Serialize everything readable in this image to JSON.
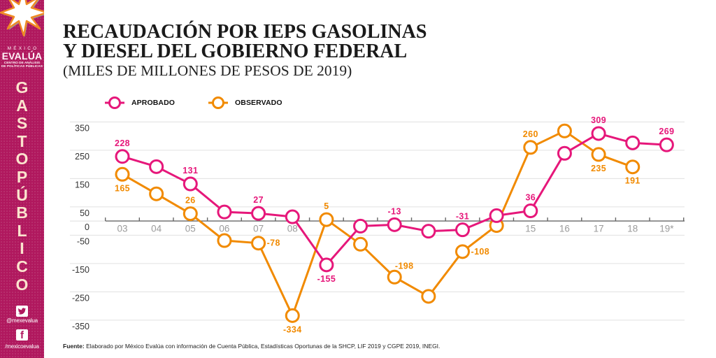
{
  "colors": {
    "sidebar": "#B0185E",
    "sidebar_text": "#FBE4CE",
    "aprobado": "#E6177A",
    "observado": "#F18A00",
    "title": "#1A1A1A"
  },
  "sidebar": {
    "logo_icon": "star-logo-icon",
    "brand": {
      "country": "MÉXICO",
      "name": "EVALÚA",
      "tagline_line1": "CENTRO DE ANÁLISIS",
      "tagline_line2": "DE POLÍTICAS PÚBLICAS"
    },
    "section_title_letters": [
      "G",
      "A",
      "S",
      "T",
      "O",
      "P",
      "Ú",
      "B",
      "L",
      "I",
      "C",
      "O"
    ],
    "social": {
      "twitter_icon": "twitter-bird-icon",
      "twitter_handle": "@mexevalua",
      "facebook_icon": "facebook-f-icon",
      "facebook_glyph": "f",
      "facebook_handle": "/mexicoevalua"
    }
  },
  "header": {
    "title_line1": "RECAUDACIÓN POR IEPS GASOLINAS",
    "title_line2": "Y DIESEL DEL GOBIERNO FEDERAL",
    "subtitle": "(MILES DE MILLONES DE PESOS DE 2019)"
  },
  "footer": {
    "source_label": "Fuente:",
    "source_text": " Elaborado por México Evalúa con información de Cuenta Pública, Estadísticas Oportunas de la SHCP, LIF 2019 y CGPE 2019, INEGI."
  },
  "chart_data": {
    "type": "line",
    "title": "RECAUDACIÓN POR IEPS GASOLINAS Y DIESEL DEL GOBIERNO FEDERAL",
    "subtitle": "(MILES DE MILLONES DE PESOS DE 2019)",
    "xlabel": "",
    "ylabel": "",
    "x_tick_labels": [
      "03",
      "04",
      "05",
      "06",
      "07",
      "08",
      "",
      "",
      "",
      "",
      "",
      "",
      "15",
      "16",
      "17",
      "18",
      "19*"
    ],
    "y_ticks": [
      350,
      250,
      150,
      50,
      0,
      -50,
      -150,
      -250,
      -350
    ],
    "y_tick_labels": [
      "350",
      "250",
      "150",
      "50",
      "0",
      "-50",
      "-150",
      "-250",
      "-350"
    ],
    "ylim": [
      -350,
      350
    ],
    "grid": true,
    "legend_position": "top-left",
    "series": [
      {
        "name": "APROBADO",
        "color": "#E6177A",
        "values": [
          228,
          192,
          131,
          32,
          27,
          15,
          -155,
          -18,
          -13,
          -36,
          -31,
          19,
          36,
          239,
          309,
          276,
          269
        ],
        "labels": [
          {
            "index": 0,
            "text": "228",
            "position": "above"
          },
          {
            "index": 2,
            "text": "131",
            "position": "above"
          },
          {
            "index": 4,
            "text": "27",
            "position": "above"
          },
          {
            "index": 6,
            "text": "-155",
            "position": "below"
          },
          {
            "index": 8,
            "text": "-13",
            "position": "above"
          },
          {
            "index": 10,
            "text": "-31",
            "position": "above"
          },
          {
            "index": 12,
            "text": "36",
            "position": "above"
          },
          {
            "index": 14,
            "text": "309",
            "position": "above"
          },
          {
            "index": 16,
            "text": "269",
            "position": "above"
          }
        ]
      },
      {
        "name": "OBSERVADO",
        "color": "#F18A00",
        "values": [
          165,
          96,
          26,
          -69,
          -78,
          -334,
          5,
          -82,
          -198,
          -266,
          -108,
          -16,
          260,
          318,
          235,
          191,
          null
        ],
        "labels": [
          {
            "index": 0,
            "text": "165",
            "position": "below"
          },
          {
            "index": 2,
            "text": "26",
            "position": "above"
          },
          {
            "index": 4,
            "text": "-78",
            "position": "right"
          },
          {
            "index": 5,
            "text": "-334",
            "position": "below"
          },
          {
            "index": 6,
            "text": "5",
            "position": "above"
          },
          {
            "index": 8,
            "text": "-198",
            "position": "above-right"
          },
          {
            "index": 10,
            "text": "-108",
            "position": "right"
          },
          {
            "index": 12,
            "text": "260",
            "position": "above"
          },
          {
            "index": 14,
            "text": "235",
            "position": "below"
          },
          {
            "index": 15,
            "text": "191",
            "position": "below"
          }
        ]
      }
    ]
  }
}
